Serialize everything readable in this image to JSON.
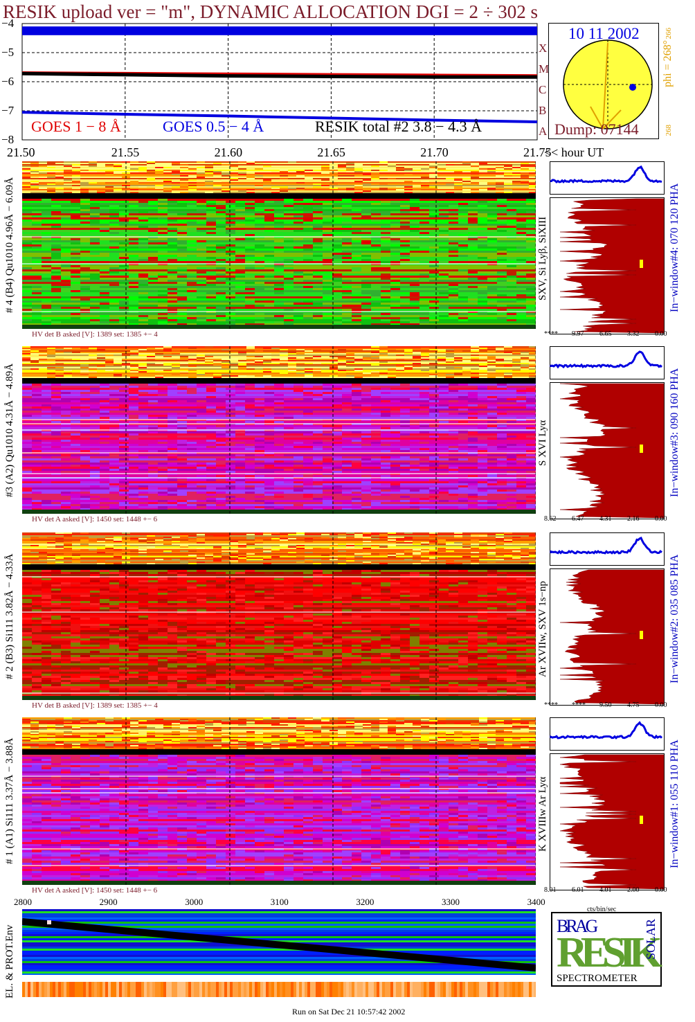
{
  "header": {
    "title": "RESIK upload ver = \"m\", DYNAMIC ALLOCATION  DGI =   2 ÷ 302 s"
  },
  "colors": {
    "goes_long": "#e00000",
    "goes_short": "#0000e0",
    "resik": "#000000",
    "title": "#7b1c2a",
    "spectrum": "#b00000",
    "window": "#0000e0",
    "sun": "#ffff40",
    "arrow": "#e0a000"
  },
  "chart_data": [
    {
      "type": "line",
      "title": "",
      "xlabel": "hour UT",
      "ylabel": "",
      "xlim": [
        21.5,
        21.75
      ],
      "ylim": [
        -8,
        -4
      ],
      "xticks": [
        "21.50",
        "21.55",
        "21.60",
        "21.65",
        "21.70",
        "21.75"
      ],
      "xaxis_suffix": "<< hour UT",
      "yticks": [
        "−4",
        "−5",
        "−6",
        "−7",
        "−8"
      ],
      "legend": [
        "GOES 1 − 8 Å",
        "GOES 0.5 − 4 Å",
        "RESIK total #2  3.8 − 4.3 Å"
      ],
      "class_labels": [
        "A",
        "B",
        "C",
        "M",
        "X"
      ],
      "series": [
        {
          "name": "GOES 1 − 8 Å",
          "x": [
            21.5,
            21.55,
            21.6,
            21.65,
            21.7,
            21.75
          ],
          "y": [
            -5.68,
            -5.7,
            -5.72,
            -5.74,
            -5.76,
            -5.78
          ]
        },
        {
          "name": "GOES 0.5 − 4 Å",
          "x": [
            21.5,
            21.55,
            21.6,
            21.65,
            21.7,
            21.75
          ],
          "y": [
            -7.05,
            -7.12,
            -7.18,
            -7.25,
            -7.32,
            -7.38
          ]
        },
        {
          "name": "RESIK total #2  3.8 − 4.3 Å",
          "x": [
            21.5,
            21.55,
            21.6,
            21.65,
            21.7,
            21.75
          ],
          "y": [
            -5.72,
            -5.76,
            -5.8,
            -5.82,
            -5.84,
            -5.84
          ]
        }
      ],
      "bands": [
        {
          "y_from": -4.1,
          "y_to": -4.4
        }
      ]
    },
    {
      "type": "heatmap",
      "title": "",
      "xlabel": "",
      "ylabel": "",
      "xlim": [
        2800,
        3400
      ],
      "xticks": [
        "2800",
        "2900",
        "3000",
        "3100",
        "3200",
        "3300",
        "3400"
      ],
      "label": "EL. & PROT.Env"
    }
  ],
  "sun": {
    "date": "10 11 2002",
    "dump": "Dump: 07144",
    "phi_label": "phi = 268°",
    "phi_sub": "266",
    "phi_bottom": "268"
  },
  "panels": [
    {
      "id": 4,
      "label": "# 4 (B4) Qu1010  4.96Å − 6.09Å",
      "lines": "SXV,  Si Lyβ,  SiXIII",
      "window": "In−window#4:  070 120 PHA",
      "hv": "HV det B asked [V]:   1389  set:   1385  +−    4",
      "ticks": [
        "****",
        "9.97",
        "6.65",
        "3.32",
        "0.00"
      ],
      "scheme": "green"
    },
    {
      "id": 3,
      "label": "#3 (A2) Qu1010  4.31Å − 4.89Å",
      "lines": "S XVI Lyα",
      "window": "In−window#3:  090 160 PHA",
      "hv": "HV det A asked [V]:   1450  set:   1448  +−    6",
      "ticks": [
        "8.62",
        "6.47",
        "4.31",
        "2.16",
        "0.00"
      ],
      "scheme": "magenta"
    },
    {
      "id": 2,
      "label": "# 2 (B3) Si111  3.82Å − 4.33Å",
      "lines": "Ar XVIIw,  SXV 1s−np",
      "window": "In−window#2:  035 085 PHA",
      "hv": "HV det B asked [V]:   1389  set:   1385  +−    4",
      "ticks": [
        "****",
        "****",
        "9.50",
        "4.75",
        "0.00"
      ],
      "scheme": "red"
    },
    {
      "id": 1,
      "label": "# 1 (A1) Si111  3.37Å − 3.88Å",
      "lines": "K XVIIIw  Ar Lyα",
      "window": "In−window#1:  055 110 PHA",
      "hv": "HV det A asked [V]:   1450  set:   1448  +−    6",
      "ticks": [
        "8.01",
        "6.01",
        "4.01",
        "2.00",
        "0.00"
      ],
      "scheme": "magenta2"
    }
  ],
  "spectrum_xlabel": "cts/bin/sec",
  "logo": {
    "brag": "BRAG",
    "resik": "RESIK",
    "solar": "SOLAR",
    "spectrometer": "SPECTROMETER"
  },
  "footer": {
    "run": "Run on Sat Dec 21 10:57:42 2002"
  }
}
